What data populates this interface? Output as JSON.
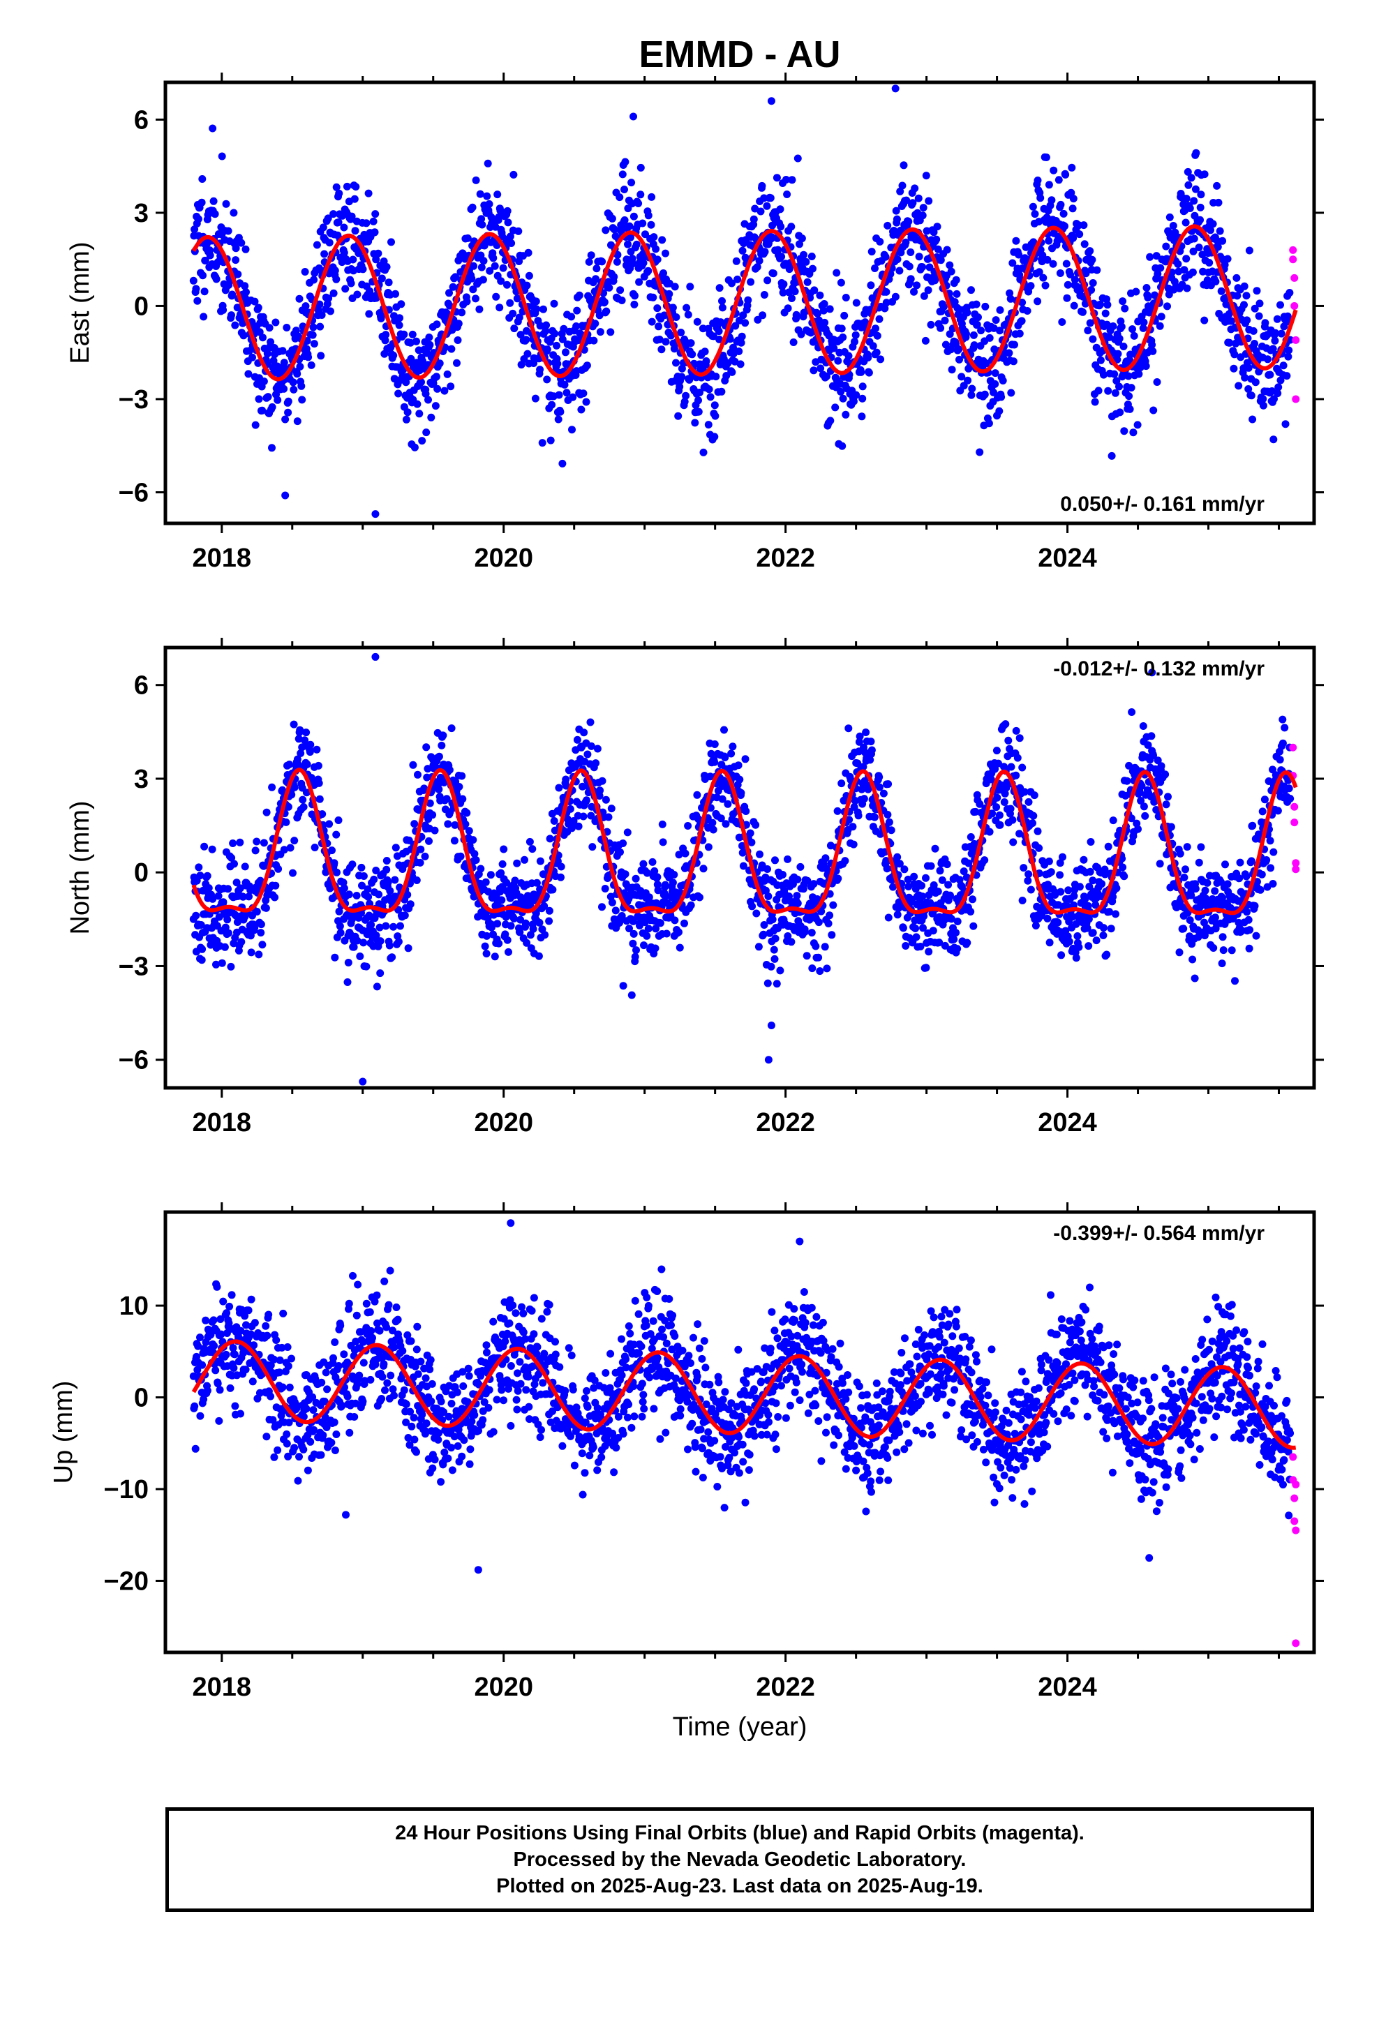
{
  "figure": {
    "title": "EMMD - AU",
    "xlabel": "Time (year)"
  },
  "footer": {
    "line1": "24 Hour Positions Using Final Orbits (blue) and Rapid Orbits (magenta).",
    "line2": "Processed by the Nevada Geodetic Laboratory.",
    "line3": "Plotted on 2025-Aug-23. Last data on 2025-Aug-19."
  },
  "colors": {
    "final_points": "#0000ff",
    "rapid_points": "#ff00ff",
    "model_curve": "#ff0000",
    "frame": "#000000"
  },
  "chart_data": [
    {
      "type": "scatter",
      "ylabel": "East (mm)",
      "xlim": [
        2017.6,
        2025.75
      ],
      "ylim": [
        -7,
        7.2
      ],
      "x_ticks": [
        2018,
        2020,
        2022,
        2024
      ],
      "y_ticks": [
        -6,
        -3,
        0,
        3,
        6
      ],
      "y_tick_labels": [
        "−6",
        "−3",
        "0",
        "3",
        "6"
      ],
      "rate_label": "0.050+/- 0.161 mm/yr",
      "rate_position": "bottom-right",
      "model": {
        "offset": 0.1,
        "annual_amp": 2.3,
        "annual_peak": 0.9,
        "semi_amp": 0.0,
        "semi_peak": 0.0,
        "trend": 0.05,
        "t0": 2021.6
      },
      "scatter": {
        "sigma": 1.0,
        "count": 2300,
        "seed": 11
      },
      "start": 2017.8,
      "end_final": 2025.58,
      "series": [
        {
          "name": "Final Orbits (blue)",
          "color": "#0000ff",
          "x_range": [
            2017.8,
            2025.58
          ]
        },
        {
          "name": "Rapid Orbits (magenta)",
          "color": "#ff00ff",
          "x": [
            2025.6,
            2025.6,
            2025.61,
            2025.61,
            2025.62,
            2025.62
          ],
          "y": [
            1.8,
            1.5,
            0.9,
            0.0,
            -1.1,
            -3.0
          ]
        },
        {
          "name": "Model fit",
          "color": "#ff0000"
        }
      ],
      "outliers": [
        {
          "x": 2018.45,
          "y": -6.1
        },
        {
          "x": 2019.09,
          "y": -6.7
        },
        {
          "x": 2020.92,
          "y": 6.1
        },
        {
          "x": 2021.9,
          "y": 6.6
        },
        {
          "x": 2022.78,
          "y": 7.0
        }
      ]
    },
    {
      "type": "scatter",
      "ylabel": "North (mm)",
      "xlim": [
        2017.6,
        2025.75
      ],
      "ylim": [
        -6.9,
        7.2
      ],
      "x_ticks": [
        2018,
        2020,
        2022,
        2024
      ],
      "y_ticks": [
        -6,
        -3,
        0,
        3,
        6
      ],
      "y_tick_labels": [
        "−6",
        "−3",
        "0",
        "3",
        "6"
      ],
      "rate_label": "-0.012+/- 0.132 mm/yr",
      "rate_position": "top-right",
      "model": {
        "offset": 0.3,
        "annual_amp": 2.2,
        "annual_peak": 0.55,
        "semi_amp": 0.75,
        "semi_peak": 0.55,
        "trend": -0.012,
        "t0": 2021.6
      },
      "scatter": {
        "sigma": 0.85,
        "count": 2300,
        "seed": 23
      },
      "start": 2017.8,
      "end_final": 2025.58,
      "series": [
        {
          "name": "Final Orbits (blue)",
          "color": "#0000ff",
          "x_range": [
            2017.8,
            2025.58
          ]
        },
        {
          "name": "Rapid Orbits (magenta)",
          "color": "#ff00ff",
          "x": [
            2025.6,
            2025.6,
            2025.61,
            2025.61,
            2025.62,
            2025.62
          ],
          "y": [
            4.0,
            3.1,
            2.1,
            1.6,
            0.3,
            0.1
          ]
        },
        {
          "name": "Model fit",
          "color": "#ff0000"
        }
      ],
      "outliers": [
        {
          "x": 2019.09,
          "y": 6.9
        },
        {
          "x": 2019.0,
          "y": -6.7
        },
        {
          "x": 2021.88,
          "y": -6.0
        },
        {
          "x": 2021.9,
          "y": -4.9
        },
        {
          "x": 2024.6,
          "y": 6.4
        }
      ]
    },
    {
      "type": "scatter",
      "ylabel": "Up (mm)",
      "xlim": [
        2017.6,
        2025.75
      ],
      "ylim": [
        -27.8,
        20.2
      ],
      "x_ticks": [
        2018,
        2020,
        2022,
        2024
      ],
      "y_ticks": [
        -20,
        -10,
        0,
        10
      ],
      "y_tick_labels": [
        "−20",
        "−10",
        "0",
        "10"
      ],
      "rate_label": "-0.399+/- 0.564 mm/yr",
      "rate_position": "top-right",
      "model": {
        "offset": 0.4,
        "annual_amp": 4.3,
        "annual_peak": 0.1,
        "semi_amp": 0.0,
        "semi_peak": 0.0,
        "trend": -0.399,
        "t0": 2021.6
      },
      "scatter": {
        "sigma": 3.2,
        "count": 2300,
        "seed": 37
      },
      "start": 2017.8,
      "end_final": 2025.58,
      "series": [
        {
          "name": "Final Orbits (blue)",
          "color": "#0000ff",
          "x_range": [
            2017.8,
            2025.58
          ]
        },
        {
          "name": "Rapid Orbits (magenta)",
          "color": "#ff00ff",
          "x": [
            2025.6,
            2025.6,
            2025.61,
            2025.61,
            2025.62,
            2025.62,
            2025.62
          ],
          "y": [
            -6.5,
            -9.0,
            -11.0,
            -13.5,
            -14.5,
            -9.5,
            -26.8
          ]
        },
        {
          "name": "Model fit",
          "color": "#ff0000"
        }
      ],
      "outliers": [
        {
          "x": 2019.82,
          "y": -18.8
        },
        {
          "x": 2020.05,
          "y": 19.0
        },
        {
          "x": 2018.88,
          "y": -12.8
        },
        {
          "x": 2024.58,
          "y": -17.5
        },
        {
          "x": 2022.1,
          "y": 17.0
        }
      ]
    }
  ]
}
